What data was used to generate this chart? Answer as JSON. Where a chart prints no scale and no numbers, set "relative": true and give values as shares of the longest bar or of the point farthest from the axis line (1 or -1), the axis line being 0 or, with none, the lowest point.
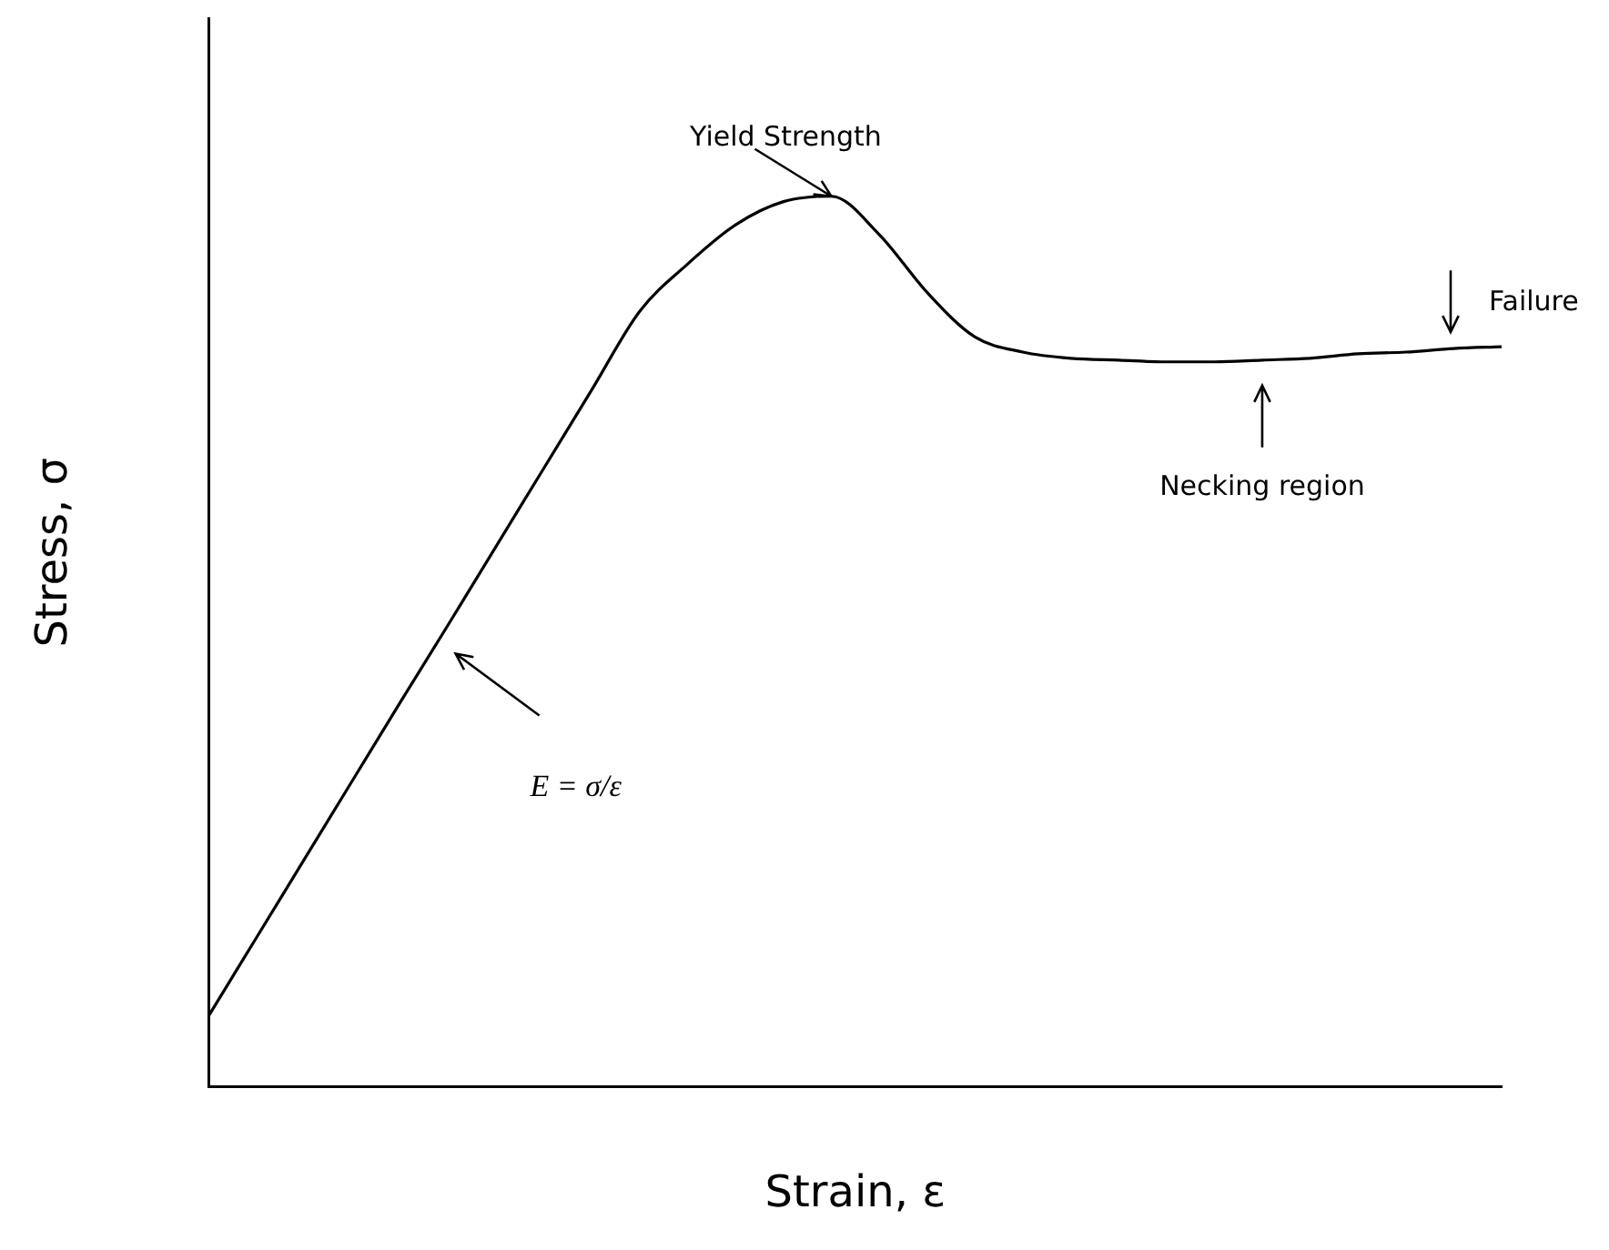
{
  "chart_data": {
    "type": "line",
    "xlabel": "Strain, ε",
    "ylabel": "Stress, σ",
    "relative": true,
    "grid": false,
    "legend": false,
    "marker": "none",
    "categories": [
      null,
      null,
      null,
      null,
      null,
      null,
      null,
      null,
      null,
      null,
      null,
      null,
      null,
      null,
      null,
      null,
      null,
      null,
      null,
      null,
      null,
      null,
      null,
      null,
      null,
      null,
      null,
      null
    ],
    "series": [
      {
        "color": "#000000",
        "values": [
          0.08,
          0.168,
          0.256,
          0.344,
          0.432,
          0.519,
          0.607,
          0.695,
          0.783,
          0.871,
          0.924,
          0.968,
          0.994,
          1,
          0.957,
          0.892,
          0.842,
          0.825,
          0.818,
          0.816,
          0.814,
          0.814,
          0.816,
          0.818,
          0.823,
          0.825,
          0.829,
          0.831
        ]
      }
    ],
    "annotations": [
      "Yield Strength",
      "Failure",
      "Necking region",
      "E = σ/ε"
    ]
  }
}
